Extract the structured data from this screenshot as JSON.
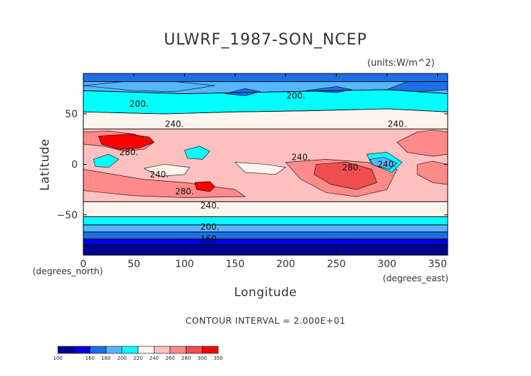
{
  "chart_data": {
    "type": "heatmap",
    "title": "ULWRF_1987-SON_NCEP",
    "units_label": "(units:W/m^2)",
    "xlabel": "Longitude",
    "ylabel": "Latitude",
    "x_unit_note": "(degrees_east)",
    "y_unit_note": "(degrees_north)",
    "xlim": [
      0,
      360
    ],
    "ylim": [
      -90,
      90
    ],
    "x_ticks": [
      0,
      50,
      100,
      150,
      200,
      250,
      300,
      350
    ],
    "y_ticks": [
      -50,
      0,
      50
    ],
    "contour_interval_text": "CONTOUR INTERVAL = 2.000E+01",
    "contour_labels": [
      {
        "text": "200.",
        "lon": 55,
        "lat": 60
      },
      {
        "text": "200.",
        "lon": 210,
        "lat": 68
      },
      {
        "text": "240.",
        "lon": 90,
        "lat": 40
      },
      {
        "text": "240.",
        "lon": 310,
        "lat": 40
      },
      {
        "text": "280.",
        "lon": 45,
        "lat": 12
      },
      {
        "text": "240.",
        "lon": 215,
        "lat": 7
      },
      {
        "text": "280.",
        "lon": 265,
        "lat": -3
      },
      {
        "text": "240.",
        "lon": 300,
        "lat": 0
      },
      {
        "text": "240.",
        "lon": 75,
        "lat": -10
      },
      {
        "text": "280.",
        "lon": 100,
        "lat": -27
      },
      {
        "text": "240.",
        "lon": 125,
        "lat": -41
      },
      {
        "text": "200.",
        "lon": 125,
        "lat": -62
      },
      {
        "text": "160.",
        "lon": 125,
        "lat": -74
      }
    ],
    "colorbar": {
      "boundaries": [
        "100",
        "160",
        "180",
        "200",
        "220",
        "240",
        "260",
        "280",
        "300",
        "350"
      ],
      "colors": [
        "#00008f",
        "#0000dc",
        "#1e6fe6",
        "#55b6ff",
        "#00ffff",
        "#fff5ee",
        "#ffc0c0",
        "#ff8a8a",
        "#f04e4e",
        "#ff0000"
      ]
    },
    "regions": [
      {
        "fill": "#00008f",
        "pts": [
          [
            0,
            -90
          ],
          [
            360,
            -90
          ],
          [
            360,
            -80
          ],
          [
            0,
            -80
          ]
        ]
      },
      {
        "fill": "#1e6fe6",
        "pts": [
          [
            0,
            90
          ],
          [
            360,
            90
          ],
          [
            360,
            82
          ],
          [
            0,
            82
          ]
        ]
      },
      {
        "fill": "#55b6ff",
        "pts": [
          [
            0,
            82
          ],
          [
            360,
            82
          ],
          [
            360,
            70
          ],
          [
            300,
            74
          ],
          [
            200,
            72
          ],
          [
            100,
            70
          ],
          [
            0,
            73
          ]
        ]
      },
      {
        "fill": "#00ffff",
        "pts": [
          [
            0,
            73
          ],
          [
            100,
            70
          ],
          [
            200,
            72
          ],
          [
            300,
            74
          ],
          [
            360,
            70
          ],
          [
            360,
            52
          ],
          [
            300,
            55
          ],
          [
            220,
            53
          ],
          [
            150,
            52
          ],
          [
            80,
            50
          ],
          [
            0,
            52
          ]
        ]
      },
      {
        "fill": "#fff5ee",
        "pts": [
          [
            0,
            52
          ],
          [
            80,
            50
          ],
          [
            150,
            52
          ],
          [
            220,
            53
          ],
          [
            300,
            55
          ],
          [
            360,
            52
          ],
          [
            360,
            35
          ],
          [
            0,
            35
          ]
        ]
      },
      {
        "fill": "#ffc0c0",
        "pts": [
          [
            0,
            35
          ],
          [
            360,
            35
          ],
          [
            360,
            -37
          ],
          [
            0,
            -37
          ]
        ]
      },
      {
        "fill": "#ff8a8a",
        "pts": [
          [
            0,
            32
          ],
          [
            25,
            33
          ],
          [
            50,
            30
          ],
          [
            70,
            22
          ],
          [
            60,
            15
          ],
          [
            40,
            13
          ],
          [
            20,
            18
          ],
          [
            0,
            20
          ]
        ]
      },
      {
        "fill": "#ff8a8a",
        "pts": [
          [
            310,
            22
          ],
          [
            330,
            32
          ],
          [
            345,
            34
          ],
          [
            360,
            32
          ],
          [
            360,
            10
          ],
          [
            345,
            8
          ],
          [
            320,
            12
          ]
        ]
      },
      {
        "fill": "#ff8a8a",
        "pts": [
          [
            0,
            -5
          ],
          [
            60,
            -15
          ],
          [
            100,
            -18
          ],
          [
            150,
            -25
          ],
          [
            160,
            -32
          ],
          [
            100,
            -33
          ],
          [
            50,
            -31
          ],
          [
            0,
            -26
          ]
        ]
      },
      {
        "fill": "#ff8a8a",
        "pts": [
          [
            200,
            2
          ],
          [
            240,
            5
          ],
          [
            280,
            2
          ],
          [
            310,
            -5
          ],
          [
            300,
            -25
          ],
          [
            270,
            -32
          ],
          [
            240,
            -28
          ],
          [
            215,
            -15
          ]
        ]
      },
      {
        "fill": "#ff8a8a",
        "pts": [
          [
            330,
            0
          ],
          [
            345,
            3
          ],
          [
            360,
            0
          ],
          [
            360,
            -20
          ],
          [
            345,
            -18
          ],
          [
            330,
            -10
          ]
        ]
      },
      {
        "fill": "#ff0000",
        "pts": [
          [
            15,
            28
          ],
          [
            45,
            30
          ],
          [
            65,
            27
          ],
          [
            70,
            22
          ],
          [
            55,
            16
          ],
          [
            35,
            15
          ],
          [
            18,
            20
          ]
        ]
      },
      {
        "fill": "#ff0000",
        "pts": [
          [
            110,
            -18
          ],
          [
            125,
            -17
          ],
          [
            130,
            -22
          ],
          [
            125,
            -27
          ],
          [
            112,
            -25
          ]
        ]
      },
      {
        "fill": "#f04e4e",
        "pts": [
          [
            230,
            0
          ],
          [
            260,
            2
          ],
          [
            285,
            -5
          ],
          [
            290,
            -18
          ],
          [
            270,
            -25
          ],
          [
            245,
            -20
          ],
          [
            228,
            -10
          ]
        ]
      },
      {
        "fill": "#fff5ee",
        "pts": [
          [
            0,
            -37
          ],
          [
            360,
            -37
          ],
          [
            360,
            -52
          ],
          [
            0,
            -52
          ]
        ]
      },
      {
        "fill": "#00ffff",
        "pts": [
          [
            0,
            -52
          ],
          [
            360,
            -52
          ],
          [
            360,
            -60
          ],
          [
            0,
            -60
          ]
        ]
      },
      {
        "fill": "#55b6ff",
        "pts": [
          [
            0,
            -60
          ],
          [
            360,
            -60
          ],
          [
            360,
            -67
          ],
          [
            0,
            -67
          ]
        ]
      },
      {
        "fill": "#1e6fe6",
        "pts": [
          [
            0,
            -67
          ],
          [
            360,
            -67
          ],
          [
            360,
            -74
          ],
          [
            0,
            -74
          ]
        ]
      },
      {
        "fill": "#0000dc",
        "pts": [
          [
            0,
            -74
          ],
          [
            360,
            -74
          ],
          [
            360,
            -80
          ],
          [
            0,
            -80
          ]
        ]
      },
      {
        "fill": "#55b6ff",
        "pts": [
          [
            0,
            78
          ],
          [
            50,
            73
          ],
          [
            90,
            72
          ],
          [
            130,
            78
          ],
          [
            90,
            82
          ],
          [
            40,
            82
          ]
        ]
      },
      {
        "fill": "#1e6fe6",
        "pts": [
          [
            140,
            70
          ],
          [
            160,
            68
          ],
          [
            175,
            72
          ],
          [
            160,
            75
          ]
        ]
      },
      {
        "fill": "#1e6fe6",
        "pts": [
          [
            220,
            73
          ],
          [
            250,
            71
          ],
          [
            265,
            74
          ],
          [
            250,
            77
          ]
        ]
      },
      {
        "fill": "#1e6fe6",
        "pts": [
          [
            300,
            74
          ],
          [
            330,
            72
          ],
          [
            360,
            74
          ],
          [
            360,
            82
          ],
          [
            320,
            82
          ]
        ]
      },
      {
        "fill": "#00ffff",
        "pts": [
          [
            100,
            14
          ],
          [
            115,
            18
          ],
          [
            125,
            13
          ],
          [
            118,
            5
          ],
          [
            103,
            6
          ]
        ]
      },
      {
        "fill": "#00ffff",
        "pts": [
          [
            10,
            5
          ],
          [
            25,
            10
          ],
          [
            35,
            5
          ],
          [
            25,
            -3
          ],
          [
            12,
            -2
          ]
        ]
      },
      {
        "fill": "#00ffff",
        "pts": [
          [
            280,
            10
          ],
          [
            300,
            12
          ],
          [
            315,
            2
          ],
          [
            305,
            -8
          ],
          [
            285,
            0
          ]
        ]
      },
      {
        "fill": "#55b6ff",
        "pts": [
          [
            283,
            5
          ],
          [
            297,
            7
          ],
          [
            310,
            1
          ],
          [
            302,
            -5
          ],
          [
            287,
            -1
          ]
        ]
      },
      {
        "fill": "#fff5ee",
        "pts": [
          [
            60,
            -4
          ],
          [
            80,
            0
          ],
          [
            105,
            -3
          ],
          [
            100,
            -10
          ],
          [
            75,
            -12
          ]
        ]
      },
      {
        "fill": "#fff5ee",
        "pts": [
          [
            150,
            2
          ],
          [
            180,
            0
          ],
          [
            200,
            -3
          ],
          [
            190,
            -10
          ],
          [
            160,
            -8
          ]
        ]
      }
    ],
    "contours": [
      {
        "pts": [
          [
            0,
            -80
          ],
          [
            360,
            -80
          ]
        ]
      },
      {
        "pts": [
          [
            0,
            -74
          ],
          [
            360,
            -74
          ]
        ]
      },
      {
        "pts": [
          [
            0,
            -67
          ],
          [
            360,
            -67
          ]
        ]
      },
      {
        "pts": [
          [
            0,
            -60
          ],
          [
            360,
            -60
          ]
        ]
      },
      {
        "pts": [
          [
            0,
            -52
          ],
          [
            360,
            -52
          ]
        ]
      },
      {
        "pts": [
          [
            0,
            -37
          ],
          [
            360,
            -37
          ]
        ]
      },
      {
        "pts": [
          [
            0,
            35
          ],
          [
            360,
            35
          ]
        ]
      },
      {
        "pts": [
          [
            0,
            52
          ],
          [
            80,
            50
          ],
          [
            150,
            52
          ],
          [
            220,
            53
          ],
          [
            300,
            55
          ],
          [
            360,
            52
          ]
        ]
      },
      {
        "pts": [
          [
            0,
            73
          ],
          [
            100,
            70
          ],
          [
            200,
            72
          ],
          [
            300,
            74
          ],
          [
            360,
            70
          ]
        ]
      },
      {
        "pts": [
          [
            0,
            82
          ],
          [
            360,
            82
          ]
        ]
      }
    ]
  }
}
